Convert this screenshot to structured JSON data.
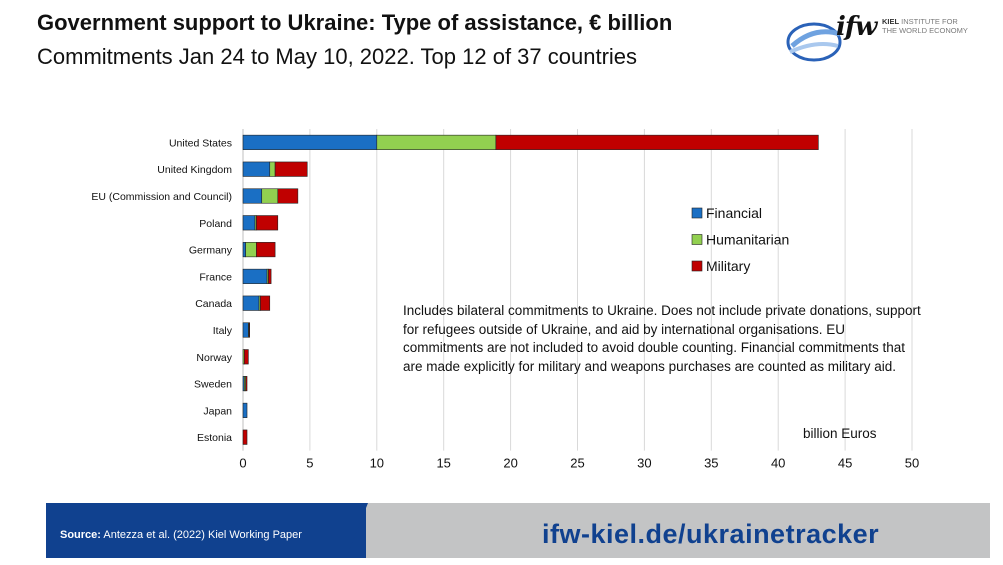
{
  "header": {
    "title": "Government support to Ukraine: Type of assistance, € billion",
    "subtitle": "Commitments Jan 24 to May 10, 2022. Top 12 of 37 countries"
  },
  "logo": {
    "wordmark": "ifw",
    "line1": "KIEL",
    "line1_rest": " INSTITUTE FOR",
    "line2": "THE WORLD ECONOMY"
  },
  "chart_data": {
    "type": "bar",
    "orientation": "horizontal",
    "stacked": true,
    "categories": [
      "United States",
      "United Kingdom",
      "EU (Commission and Council)",
      "Poland",
      "Germany",
      "France",
      "Canada",
      "Italy",
      "Norway",
      "Sweden",
      "Japan",
      "Estonia"
    ],
    "series": [
      {
        "name": "Financial",
        "color": "#1a6fc4",
        "values": [
          10.0,
          2.0,
          1.4,
          0.9,
          0.2,
          1.8,
          1.2,
          0.4,
          0.0,
          0.1,
          0.3,
          0.0
        ]
      },
      {
        "name": "Humanitarian",
        "color": "#92d050",
        "values": [
          8.9,
          0.4,
          1.2,
          0.1,
          0.8,
          0.1,
          0.1,
          0.05,
          0.1,
          0.1,
          0.0,
          0.0
        ]
      },
      {
        "name": "Military",
        "color": "#c00000",
        "values": [
          24.1,
          2.4,
          1.5,
          1.6,
          1.4,
          0.2,
          0.7,
          0.05,
          0.3,
          0.1,
          0.0,
          0.3
        ]
      }
    ],
    "xlim": [
      0,
      50
    ],
    "xticks": [
      0,
      5,
      10,
      15,
      20,
      25,
      30,
      35,
      40,
      45,
      50
    ],
    "grid": true,
    "legend_position": "right",
    "xlabel": "billion Euros",
    "annotation": "Includes bilateral commitments to Ukraine. Does not include private donations, support for refugees outside of Ukraine, and aid by international organisations. EU commitments are not included to avoid double counting. Financial commitments that are made explicitly for military and weapons purchases are counted as military aid."
  },
  "footer": {
    "source_label": "Source:",
    "source_text": " Antezza et al. (2022) Kiel Working Paper",
    "url": "ifw-kiel.de/ukrainetracker"
  }
}
